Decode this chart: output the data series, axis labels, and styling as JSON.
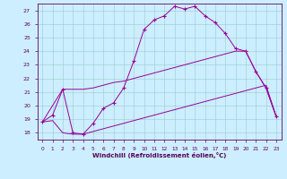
{
  "title": "",
  "xlabel": "Windchill (Refroidissement éolien,°C)",
  "xlim": [
    -0.5,
    23.5
  ],
  "ylim": [
    17.5,
    27.5
  ],
  "xticks": [
    0,
    1,
    2,
    3,
    4,
    5,
    6,
    7,
    8,
    9,
    10,
    11,
    12,
    13,
    14,
    15,
    16,
    17,
    18,
    19,
    20,
    21,
    22,
    23
  ],
  "yticks": [
    18,
    19,
    20,
    21,
    22,
    23,
    24,
    25,
    26,
    27
  ],
  "background_color": "#cceeff",
  "grid_color": "#99cccc",
  "line_color": "#990099",
  "curve1_x": [
    0,
    1,
    2,
    3,
    4,
    5,
    6,
    7,
    8,
    9,
    10,
    11,
    12,
    13,
    14,
    15,
    16,
    17,
    18,
    19,
    20,
    21,
    22,
    23
  ],
  "curve1_y": [
    18.8,
    19.3,
    21.2,
    18.0,
    17.9,
    18.7,
    19.8,
    20.2,
    21.3,
    23.3,
    25.6,
    26.3,
    26.6,
    27.3,
    27.1,
    27.3,
    26.6,
    26.1,
    25.3,
    24.2,
    24.0,
    22.5,
    21.3,
    19.2
  ],
  "curve2_x": [
    0,
    2,
    3,
    4,
    5,
    6,
    7,
    8,
    9,
    10,
    11,
    12,
    13,
    14,
    15,
    16,
    17,
    18,
    19,
    20,
    21,
    22,
    23
  ],
  "curve2_y": [
    18.8,
    21.2,
    21.2,
    21.2,
    21.3,
    21.5,
    21.7,
    21.8,
    22.0,
    22.2,
    22.4,
    22.6,
    22.8,
    23.0,
    23.2,
    23.4,
    23.6,
    23.8,
    24.0,
    24.0,
    22.5,
    21.3,
    19.2
  ],
  "curve3_x": [
    0,
    1,
    2,
    3,
    4,
    5,
    6,
    7,
    8,
    9,
    10,
    11,
    12,
    13,
    14,
    15,
    16,
    17,
    18,
    19,
    20,
    21,
    22,
    23
  ],
  "curve3_y": [
    18.8,
    18.9,
    18.0,
    17.9,
    17.9,
    18.1,
    18.3,
    18.5,
    18.7,
    18.9,
    19.1,
    19.3,
    19.5,
    19.7,
    19.9,
    20.1,
    20.3,
    20.5,
    20.7,
    20.9,
    21.1,
    21.3,
    21.5,
    19.2
  ]
}
